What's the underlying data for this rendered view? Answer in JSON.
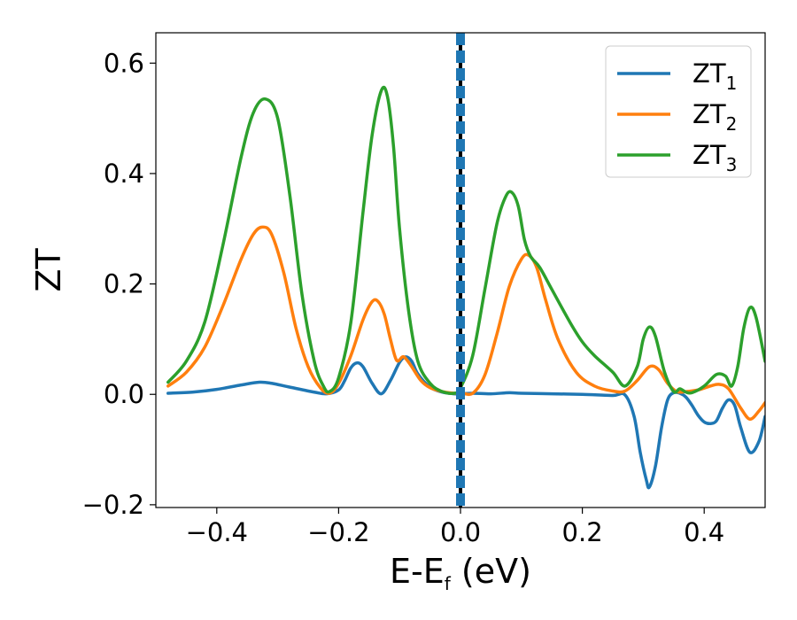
{
  "chart_data": {
    "type": "line",
    "xlabel_main": "E-E",
    "xlabel_sub": "f",
    "xlabel_unit": " (eV)",
    "ylabel": "ZT",
    "xlim": [
      -0.5,
      0.5
    ],
    "ylim": [
      -0.205,
      0.655
    ],
    "xticks": [
      -0.4,
      -0.2,
      0.0,
      0.2,
      0.4
    ],
    "xtick_labels": [
      "−0.4",
      "−0.2",
      "0.0",
      "0.2",
      "0.4"
    ],
    "yticks": [
      -0.2,
      0.0,
      0.2,
      0.4,
      0.6
    ],
    "ytick_labels": [
      "−0.2",
      "0.0",
      "0.2",
      "0.4",
      "0.6"
    ],
    "grid": false,
    "legend_position": "top-right",
    "vertical_marker_x": 0.0,
    "series": [
      {
        "name_main": "ZT",
        "name_sub": "1",
        "color": "#1f77b4",
        "x": [
          -0.48,
          -0.44,
          -0.4,
          -0.36,
          -0.33,
          -0.31,
          -0.28,
          -0.24,
          -0.22,
          -0.2,
          -0.19,
          -0.18,
          -0.17,
          -0.16,
          -0.145,
          -0.13,
          -0.115,
          -0.1,
          -0.09,
          -0.08,
          -0.07,
          -0.05,
          -0.03,
          -0.01,
          0.0,
          0.02,
          0.05,
          0.08,
          0.1,
          0.15,
          0.2,
          0.25,
          0.27,
          0.285,
          0.295,
          0.305,
          0.31,
          0.32,
          0.33,
          0.34,
          0.35,
          0.36,
          0.37,
          0.38,
          0.39,
          0.4,
          0.41,
          0.42,
          0.43,
          0.44,
          0.45,
          0.46,
          0.475,
          0.49,
          0.5
        ],
        "y": [
          0.002,
          0.004,
          0.009,
          0.017,
          0.022,
          0.02,
          0.013,
          0.004,
          0.001,
          0.008,
          0.025,
          0.048,
          0.057,
          0.05,
          0.02,
          0.001,
          0.025,
          0.058,
          0.068,
          0.06,
          0.037,
          0.013,
          0.004,
          0.001,
          0.001,
          0.002,
          0.001,
          0.003,
          0.002,
          0.001,
          0.0,
          -0.002,
          -0.001,
          -0.04,
          -0.105,
          -0.155,
          -0.168,
          -0.13,
          -0.06,
          -0.01,
          0.003,
          0.002,
          -0.005,
          -0.02,
          -0.038,
          -0.05,
          -0.053,
          -0.048,
          -0.025,
          -0.01,
          -0.02,
          -0.06,
          -0.105,
          -0.085,
          -0.04
        ]
      },
      {
        "name_main": "ZT",
        "name_sub": "2",
        "color": "#ff7f0e",
        "x": [
          -0.48,
          -0.45,
          -0.42,
          -0.39,
          -0.36,
          -0.34,
          -0.325,
          -0.31,
          -0.29,
          -0.27,
          -0.25,
          -0.23,
          -0.215,
          -0.2,
          -0.18,
          -0.16,
          -0.145,
          -0.135,
          -0.125,
          -0.115,
          -0.105,
          -0.095,
          -0.09,
          -0.08,
          -0.065,
          -0.05,
          -0.03,
          -0.01,
          0.0,
          0.02,
          0.04,
          0.06,
          0.08,
          0.1,
          0.112,
          0.125,
          0.14,
          0.16,
          0.19,
          0.22,
          0.25,
          0.27,
          0.29,
          0.31,
          0.325,
          0.34,
          0.355,
          0.37,
          0.39,
          0.41,
          0.425,
          0.44,
          0.46,
          0.475,
          0.49,
          0.5
        ],
        "y": [
          0.015,
          0.04,
          0.085,
          0.16,
          0.245,
          0.29,
          0.303,
          0.29,
          0.22,
          0.12,
          0.05,
          0.012,
          0.002,
          0.02,
          0.07,
          0.135,
          0.168,
          0.168,
          0.145,
          0.1,
          0.062,
          0.068,
          0.065,
          0.05,
          0.025,
          0.012,
          0.005,
          0.002,
          0.003,
          0.002,
          0.035,
          0.11,
          0.195,
          0.245,
          0.252,
          0.23,
          0.17,
          0.1,
          0.04,
          0.015,
          0.006,
          0.006,
          0.025,
          0.05,
          0.045,
          0.02,
          0.005,
          0.005,
          0.008,
          0.015,
          0.018,
          0.01,
          -0.025,
          -0.045,
          -0.03,
          -0.015
        ]
      },
      {
        "name_main": "ZT",
        "name_sub": "3",
        "color": "#2ca02c",
        "x": [
          -0.48,
          -0.45,
          -0.42,
          -0.39,
          -0.36,
          -0.34,
          -0.32,
          -0.3,
          -0.28,
          -0.26,
          -0.24,
          -0.225,
          -0.215,
          -0.2,
          -0.18,
          -0.16,
          -0.145,
          -0.13,
          -0.12,
          -0.11,
          -0.1,
          -0.085,
          -0.07,
          -0.05,
          -0.03,
          -0.01,
          0.0,
          0.02,
          0.04,
          0.06,
          0.075,
          0.085,
          0.095,
          0.105,
          0.115,
          0.13,
          0.15,
          0.18,
          0.2,
          0.22,
          0.25,
          0.27,
          0.29,
          0.3,
          0.31,
          0.32,
          0.335,
          0.35,
          0.36,
          0.37,
          0.38,
          0.4,
          0.42,
          0.435,
          0.445,
          0.455,
          0.465,
          0.475,
          0.485,
          0.5
        ],
        "y": [
          0.022,
          0.06,
          0.13,
          0.27,
          0.43,
          0.51,
          0.535,
          0.5,
          0.36,
          0.18,
          0.06,
          0.015,
          0.005,
          0.03,
          0.13,
          0.33,
          0.47,
          0.55,
          0.54,
          0.45,
          0.3,
          0.15,
          0.06,
          0.02,
          0.005,
          0.002,
          0.012,
          0.07,
          0.19,
          0.31,
          0.36,
          0.365,
          0.34,
          0.28,
          0.25,
          0.23,
          0.19,
          0.13,
          0.095,
          0.07,
          0.04,
          0.015,
          0.05,
          0.1,
          0.122,
          0.105,
          0.04,
          0.005,
          0.01,
          0.004,
          0.003,
          0.015,
          0.036,
          0.033,
          0.015,
          0.05,
          0.12,
          0.157,
          0.14,
          0.06
        ]
      }
    ]
  }
}
